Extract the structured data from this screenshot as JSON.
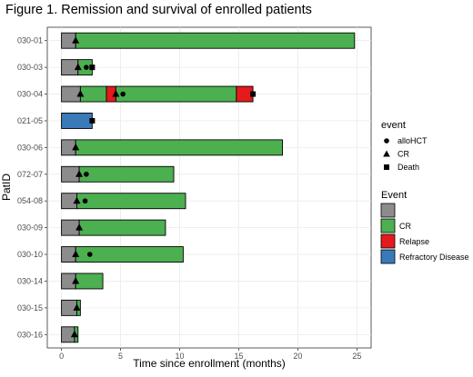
{
  "figure_title": "Figure 1. Remission and survival of enrolled patients",
  "chart_data": {
    "type": "swimmer",
    "xlabel": "Time since enrollment (months)",
    "ylabel": "PatID",
    "xlim": [
      -1.2,
      26.2
    ],
    "x_ticks": [
      0,
      5,
      10,
      15,
      20,
      25
    ],
    "grid": true,
    "legend_placement": "right",
    "colors": {
      "gray": "#8c8c8c",
      "CR": "#4caf50",
      "Relapse": "#e41a1c",
      "Refractory Disease": "#3a7ab8"
    },
    "patients": [
      {
        "id": "030-01",
        "segments": [
          {
            "state": "gray",
            "start": 0,
            "end": 1.2
          },
          {
            "state": "CR",
            "start": 1.2,
            "end": 24.8
          }
        ],
        "events": [
          {
            "type": "CR",
            "x": 1.2
          }
        ]
      },
      {
        "id": "030-03",
        "segments": [
          {
            "state": "gray",
            "start": 0,
            "end": 1.4
          },
          {
            "state": "CR",
            "start": 1.4,
            "end": 2.6
          }
        ],
        "events": [
          {
            "type": "CR",
            "x": 1.4
          },
          {
            "type": "alloHCT",
            "x": 2.1
          },
          {
            "type": "Death",
            "x": 2.6
          }
        ]
      },
      {
        "id": "030-04",
        "segments": [
          {
            "state": "gray",
            "start": 0,
            "end": 1.6
          },
          {
            "state": "CR",
            "start": 1.6,
            "end": 3.8
          },
          {
            "state": "Relapse",
            "start": 3.8,
            "end": 4.6
          },
          {
            "state": "CR",
            "start": 4.6,
            "end": 14.8
          },
          {
            "state": "Relapse",
            "start": 14.8,
            "end": 16.2
          }
        ],
        "events": [
          {
            "type": "CR",
            "x": 1.6
          },
          {
            "type": "CR",
            "x": 4.6
          },
          {
            "type": "alloHCT",
            "x": 5.2
          },
          {
            "type": "Death",
            "x": 16.2
          }
        ]
      },
      {
        "id": "021-05",
        "segments": [
          {
            "state": "Refractory Disease",
            "start": 0,
            "end": 2.6
          }
        ],
        "events": [
          {
            "type": "Death",
            "x": 2.6
          }
        ]
      },
      {
        "id": "030-06",
        "segments": [
          {
            "state": "gray",
            "start": 0,
            "end": 1.2
          },
          {
            "state": "CR",
            "start": 1.2,
            "end": 18.7
          }
        ],
        "events": [
          {
            "type": "CR",
            "x": 1.2
          }
        ]
      },
      {
        "id": "072-07",
        "segments": [
          {
            "state": "gray",
            "start": 0,
            "end": 1.5
          },
          {
            "state": "CR",
            "start": 1.5,
            "end": 9.5
          }
        ],
        "events": [
          {
            "type": "CR",
            "x": 1.5
          },
          {
            "type": "alloHCT",
            "x": 2.1
          }
        ]
      },
      {
        "id": "054-08",
        "segments": [
          {
            "state": "gray",
            "start": 0,
            "end": 1.3
          },
          {
            "state": "CR",
            "start": 1.3,
            "end": 10.5
          }
        ],
        "events": [
          {
            "type": "CR",
            "x": 1.3
          },
          {
            "type": "alloHCT",
            "x": 2.0
          }
        ]
      },
      {
        "id": "030-09",
        "segments": [
          {
            "state": "gray",
            "start": 0,
            "end": 1.5
          },
          {
            "state": "CR",
            "start": 1.5,
            "end": 8.8
          }
        ],
        "events": [
          {
            "type": "CR",
            "x": 1.5
          }
        ]
      },
      {
        "id": "030-10",
        "segments": [
          {
            "state": "gray",
            "start": 0,
            "end": 1.2
          },
          {
            "state": "CR",
            "start": 1.2,
            "end": 10.3
          }
        ],
        "events": [
          {
            "type": "CR",
            "x": 1.2
          },
          {
            "type": "alloHCT",
            "x": 2.4
          }
        ]
      },
      {
        "id": "030-14",
        "segments": [
          {
            "state": "gray",
            "start": 0,
            "end": 1.2
          },
          {
            "state": "CR",
            "start": 1.2,
            "end": 3.5
          }
        ],
        "events": [
          {
            "type": "CR",
            "x": 1.2
          }
        ]
      },
      {
        "id": "030-15",
        "segments": [
          {
            "state": "gray",
            "start": 0,
            "end": 1.3
          },
          {
            "state": "CR",
            "start": 1.3,
            "end": 1.6
          }
        ],
        "events": [
          {
            "type": "CR",
            "x": 1.3
          }
        ]
      },
      {
        "id": "030-16",
        "segments": [
          {
            "state": "gray",
            "start": 0,
            "end": 1.1
          },
          {
            "state": "CR",
            "start": 1.1,
            "end": 1.4
          }
        ],
        "events": [
          {
            "type": "CR",
            "x": 1.1
          }
        ]
      }
    ],
    "legend_event": {
      "title": "event",
      "items": [
        {
          "label": "alloHCT",
          "shape": "circle"
        },
        {
          "label": "CR",
          "shape": "triangle"
        },
        {
          "label": "Death",
          "shape": "square"
        }
      ]
    },
    "legend_state": {
      "title": "Event",
      "items": [
        {
          "label": "",
          "color": "#8c8c8c"
        },
        {
          "label": "CR",
          "color": "#4caf50"
        },
        {
          "label": "Relapse",
          "color": "#e41a1c"
        },
        {
          "label": "Refractory Disease",
          "color": "#3a7ab8"
        }
      ]
    }
  }
}
